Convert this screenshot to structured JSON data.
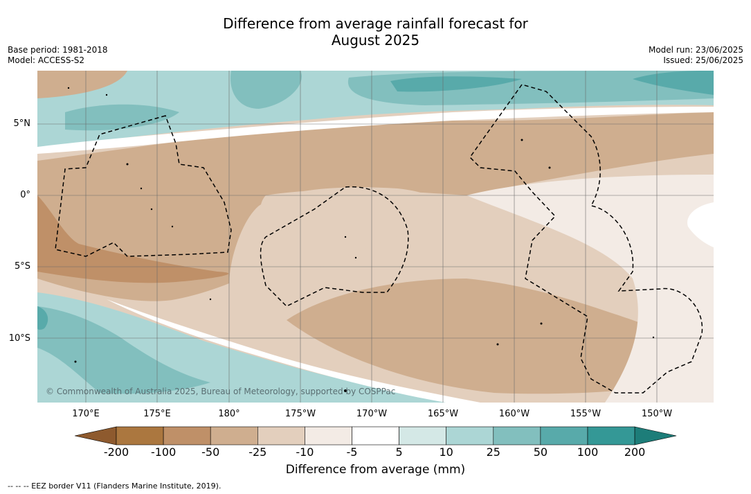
{
  "title_line1": "Difference from average rainfall forecast for",
  "title_line2": "August 2025",
  "base_period": "Base period: 1981-2018",
  "model": "Model: ACCESS-S2",
  "model_run": "Model run: 23/06/2025",
  "issued": "Issued: 25/06/2025",
  "credit": "© Commonwealth of Australia 2025, Bureau of Meteorology, supported by COSPPac",
  "lat_labels": [
    "5°N",
    "0°",
    "5°S",
    "10°S"
  ],
  "lon_labels": [
    "170°E",
    "175°E",
    "180°",
    "175°W",
    "170°W",
    "165°W",
    "160°W",
    "155°W",
    "150°W"
  ],
  "colorbar": {
    "ticks": [
      "-200",
      "-100",
      "-50",
      "-25",
      "-10",
      "-5",
      "5",
      "10",
      "25",
      "50",
      "100",
      "200"
    ],
    "colors": [
      "#8e5a2e",
      "#ab773f",
      "#bf9068",
      "#cfae8f",
      "#e3cfbd",
      "#f3ebe5",
      "#ffffff",
      "#d4e8e6",
      "#acd6d5",
      "#82bfbe",
      "#58aaaa",
      "#349896",
      "#1d7d79"
    ],
    "title": "Difference from average (mm)"
  },
  "legend_footer": "--  --  -- EEZ border V11 (Flanders Marine Institute, 2019)."
}
